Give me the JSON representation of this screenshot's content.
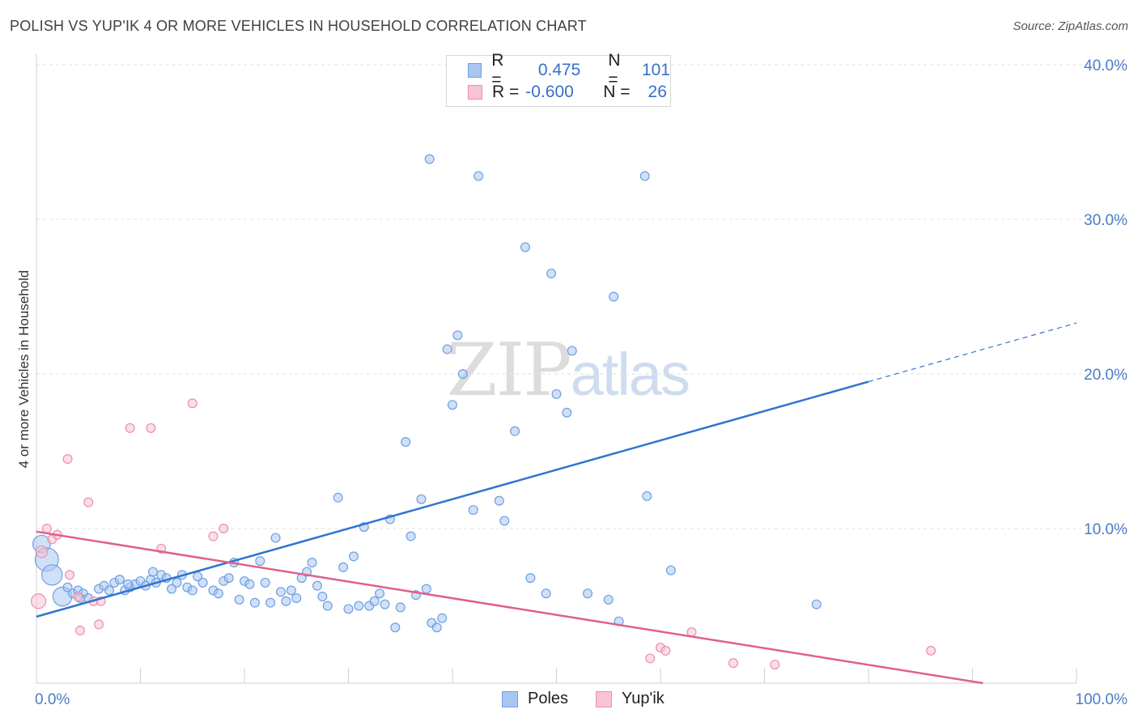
{
  "title": "POLISH VS YUP'IK 4 OR MORE VEHICLES IN HOUSEHOLD CORRELATION CHART",
  "source": "Source: ZipAtlas.com",
  "watermark": {
    "zip": "ZIP",
    "atlas": "atlas"
  },
  "legend": {
    "rows": [
      {
        "r_label": "R =",
        "r_value": "0.475",
        "n_label": "N =",
        "n_value": "101",
        "color": "#a9c6f2",
        "border": "#6f9fe0"
      },
      {
        "r_label": "R =",
        "r_value": "-0.600",
        "n_label": "N =",
        "n_value": "26",
        "color": "#f8c3d2",
        "border": "#ec8eab"
      }
    ]
  },
  "bottom_legend": [
    {
      "label": "Poles",
      "color": "#a9c6f2",
      "border": "#6f9fe0"
    },
    {
      "label": "Yup'ik",
      "color": "#f8c3d2",
      "border": "#ec8eab"
    }
  ],
  "chart_data": {
    "type": "scatter",
    "title": "POLISH VS YUP'IK 4 OR MORE VEHICLES IN HOUSEHOLD CORRELATION CHART",
    "xlabel": "",
    "ylabel": "4 or more Vehicles in Household",
    "xlim": [
      0,
      100
    ],
    "ylim": [
      0,
      40
    ],
    "x_tick_labels": [
      "0.0%",
      "100.0%"
    ],
    "y_tick_labels": [
      "10.0%",
      "20.0%",
      "30.0%",
      "40.0%"
    ],
    "y_ticks": [
      10,
      20,
      30,
      40
    ],
    "grid": true,
    "legend_position": "top-center",
    "series": [
      {
        "name": "Poles",
        "color": "#a9c6f2",
        "edge": "#6f9fe0",
        "trend": {
          "x0": 0,
          "y0": 4.3,
          "x1": 80,
          "y1": 19.5,
          "dashed_to_x": 100,
          "dashed_to_y": 23.3,
          "color": "#2f74d0"
        },
        "points": [
          [
            0.5,
            9.0,
            1.2
          ],
          [
            1,
            8.0,
            1.6
          ],
          [
            1.5,
            7.0,
            1.4
          ],
          [
            2.5,
            5.6,
            1.3
          ],
          [
            3,
            6.2,
            0.6
          ],
          [
            3.5,
            5.8,
            0.6
          ],
          [
            4,
            6.0,
            0.6
          ],
          [
            4.5,
            5.8,
            0.6
          ],
          [
            5,
            5.5,
            0.6
          ],
          [
            6,
            6.1,
            0.6
          ],
          [
            6.5,
            6.3,
            0.6
          ],
          [
            7,
            6.0,
            0.6
          ],
          [
            7.5,
            6.5,
            0.6
          ],
          [
            8,
            6.7,
            0.6
          ],
          [
            8.5,
            6.0,
            0.6
          ],
          [
            9,
            6.2,
            0.6
          ],
          [
            9.5,
            6.4,
            0.6
          ],
          [
            10,
            6.6,
            0.6
          ],
          [
            10.5,
            6.3,
            0.6
          ],
          [
            11,
            6.7,
            0.6
          ],
          [
            11.5,
            6.5,
            0.6
          ],
          [
            12,
            7.0,
            0.6
          ],
          [
            12.5,
            6.8,
            0.6
          ],
          [
            13,
            6.1,
            0.6
          ],
          [
            13.5,
            6.5,
            0.6
          ],
          [
            14,
            7.0,
            0.6
          ],
          [
            14.5,
            6.2,
            0.6
          ],
          [
            15,
            6.0,
            0.6
          ],
          [
            15.5,
            6.9,
            0.6
          ],
          [
            16,
            6.5,
            0.6
          ],
          [
            17,
            6.0,
            0.6
          ],
          [
            17.5,
            5.8,
            0.6
          ],
          [
            18,
            6.6,
            0.6
          ],
          [
            18.5,
            6.8,
            0.6
          ],
          [
            19,
            7.8,
            0.6
          ],
          [
            19.5,
            5.4,
            0.6
          ],
          [
            20,
            6.6,
            0.6
          ],
          [
            20.5,
            6.4,
            0.6
          ],
          [
            21,
            5.2,
            0.6
          ],
          [
            21.5,
            7.9,
            0.6
          ],
          [
            22,
            6.5,
            0.6
          ],
          [
            22.5,
            5.2,
            0.6
          ],
          [
            23,
            9.4,
            0.6
          ],
          [
            23.5,
            5.9,
            0.6
          ],
          [
            24,
            5.3,
            0.6
          ],
          [
            24.5,
            6.0,
            0.6
          ],
          [
            25,
            5.5,
            0.6
          ],
          [
            25.5,
            6.8,
            0.6
          ],
          [
            26,
            7.2,
            0.6
          ],
          [
            26.5,
            7.8,
            0.6
          ],
          [
            27,
            6.3,
            0.6
          ],
          [
            27.5,
            5.6,
            0.6
          ],
          [
            28,
            5.0,
            0.6
          ],
          [
            29,
            12.0,
            0.6
          ],
          [
            29.5,
            7.5,
            0.6
          ],
          [
            30,
            4.8,
            0.6
          ],
          [
            30.5,
            8.2,
            0.6
          ],
          [
            31,
            5.0,
            0.6
          ],
          [
            31.5,
            10.1,
            0.6
          ],
          [
            32,
            5.0,
            0.6
          ],
          [
            32.5,
            5.3,
            0.6
          ],
          [
            33,
            5.8,
            0.6
          ],
          [
            33.5,
            5.1,
            0.6
          ],
          [
            34,
            10.6,
            0.6
          ],
          [
            34.5,
            3.6,
            0.6
          ],
          [
            35,
            4.9,
            0.6
          ],
          [
            35.5,
            15.6,
            0.6
          ],
          [
            36,
            9.5,
            0.6
          ],
          [
            36.5,
            5.7,
            0.6
          ],
          [
            37,
            11.9,
            0.6
          ],
          [
            37.5,
            6.1,
            0.6
          ],
          [
            37.8,
            33.9,
            0.6
          ],
          [
            38,
            3.9,
            0.6
          ],
          [
            39,
            4.2,
            0.6
          ],
          [
            38.5,
            3.6,
            0.6
          ],
          [
            39.5,
            21.6,
            0.6
          ],
          [
            40,
            18.0,
            0.6
          ],
          [
            40.5,
            22.5,
            0.6
          ],
          [
            41,
            20.0,
            0.6
          ],
          [
            42,
            11.2,
            0.6
          ],
          [
            42.5,
            32.8,
            0.6
          ],
          [
            44.5,
            11.8,
            0.6
          ],
          [
            45,
            10.5,
            0.6
          ],
          [
            46,
            16.3,
            0.6
          ],
          [
            47,
            28.2,
            0.6
          ],
          [
            47.5,
            6.8,
            0.6
          ],
          [
            49,
            5.8,
            0.6
          ],
          [
            49.5,
            26.5,
            0.6
          ],
          [
            50,
            18.7,
            0.6
          ],
          [
            51,
            17.5,
            0.6
          ],
          [
            51.5,
            21.5,
            0.6
          ],
          [
            53,
            5.8,
            0.6
          ],
          [
            55,
            5.4,
            0.6
          ],
          [
            55.5,
            25.0,
            0.6
          ],
          [
            56,
            4.0,
            0.6
          ],
          [
            58.5,
            32.8,
            0.6
          ],
          [
            58.7,
            12.1,
            0.6
          ],
          [
            61,
            7.3,
            0.6
          ],
          [
            75,
            5.1,
            0.6
          ],
          [
            4.2,
            5.5,
            0.6
          ],
          [
            8.8,
            6.4,
            0.6
          ],
          [
            11.2,
            7.2,
            0.6
          ]
        ]
      },
      {
        "name": "Yup'ik",
        "color": "#f8c3d2",
        "edge": "#ec8eab",
        "trend": {
          "x0": 0,
          "y0": 9.8,
          "x1": 91,
          "y1": 0,
          "color": "#e0608a"
        },
        "points": [
          [
            0.2,
            5.3,
            1.0
          ],
          [
            0.5,
            8.5,
            0.8
          ],
          [
            1,
            10.0,
            0.6
          ],
          [
            1.5,
            9.3,
            0.6
          ],
          [
            2,
            9.6,
            0.6
          ],
          [
            3,
            14.5,
            0.6
          ],
          [
            3.2,
            7.0,
            0.6
          ],
          [
            4,
            5.6,
            0.6
          ],
          [
            4.2,
            3.4,
            0.6
          ],
          [
            5,
            11.7,
            0.6
          ],
          [
            5.5,
            5.3,
            0.6
          ],
          [
            6,
            3.8,
            0.6
          ],
          [
            6.2,
            5.3,
            0.6
          ],
          [
            9,
            16.5,
            0.6
          ],
          [
            11,
            16.5,
            0.6
          ],
          [
            12,
            8.7,
            0.6
          ],
          [
            15,
            18.1,
            0.6
          ],
          [
            17,
            9.5,
            0.6
          ],
          [
            18,
            10.0,
            0.6
          ],
          [
            60,
            2.3,
            0.6
          ],
          [
            60.5,
            2.1,
            0.6
          ],
          [
            59,
            1.6,
            0.6
          ],
          [
            63,
            3.3,
            0.6
          ],
          [
            67,
            1.3,
            0.6
          ],
          [
            71,
            1.2,
            0.6
          ],
          [
            86,
            2.1,
            0.6
          ]
        ]
      }
    ]
  }
}
